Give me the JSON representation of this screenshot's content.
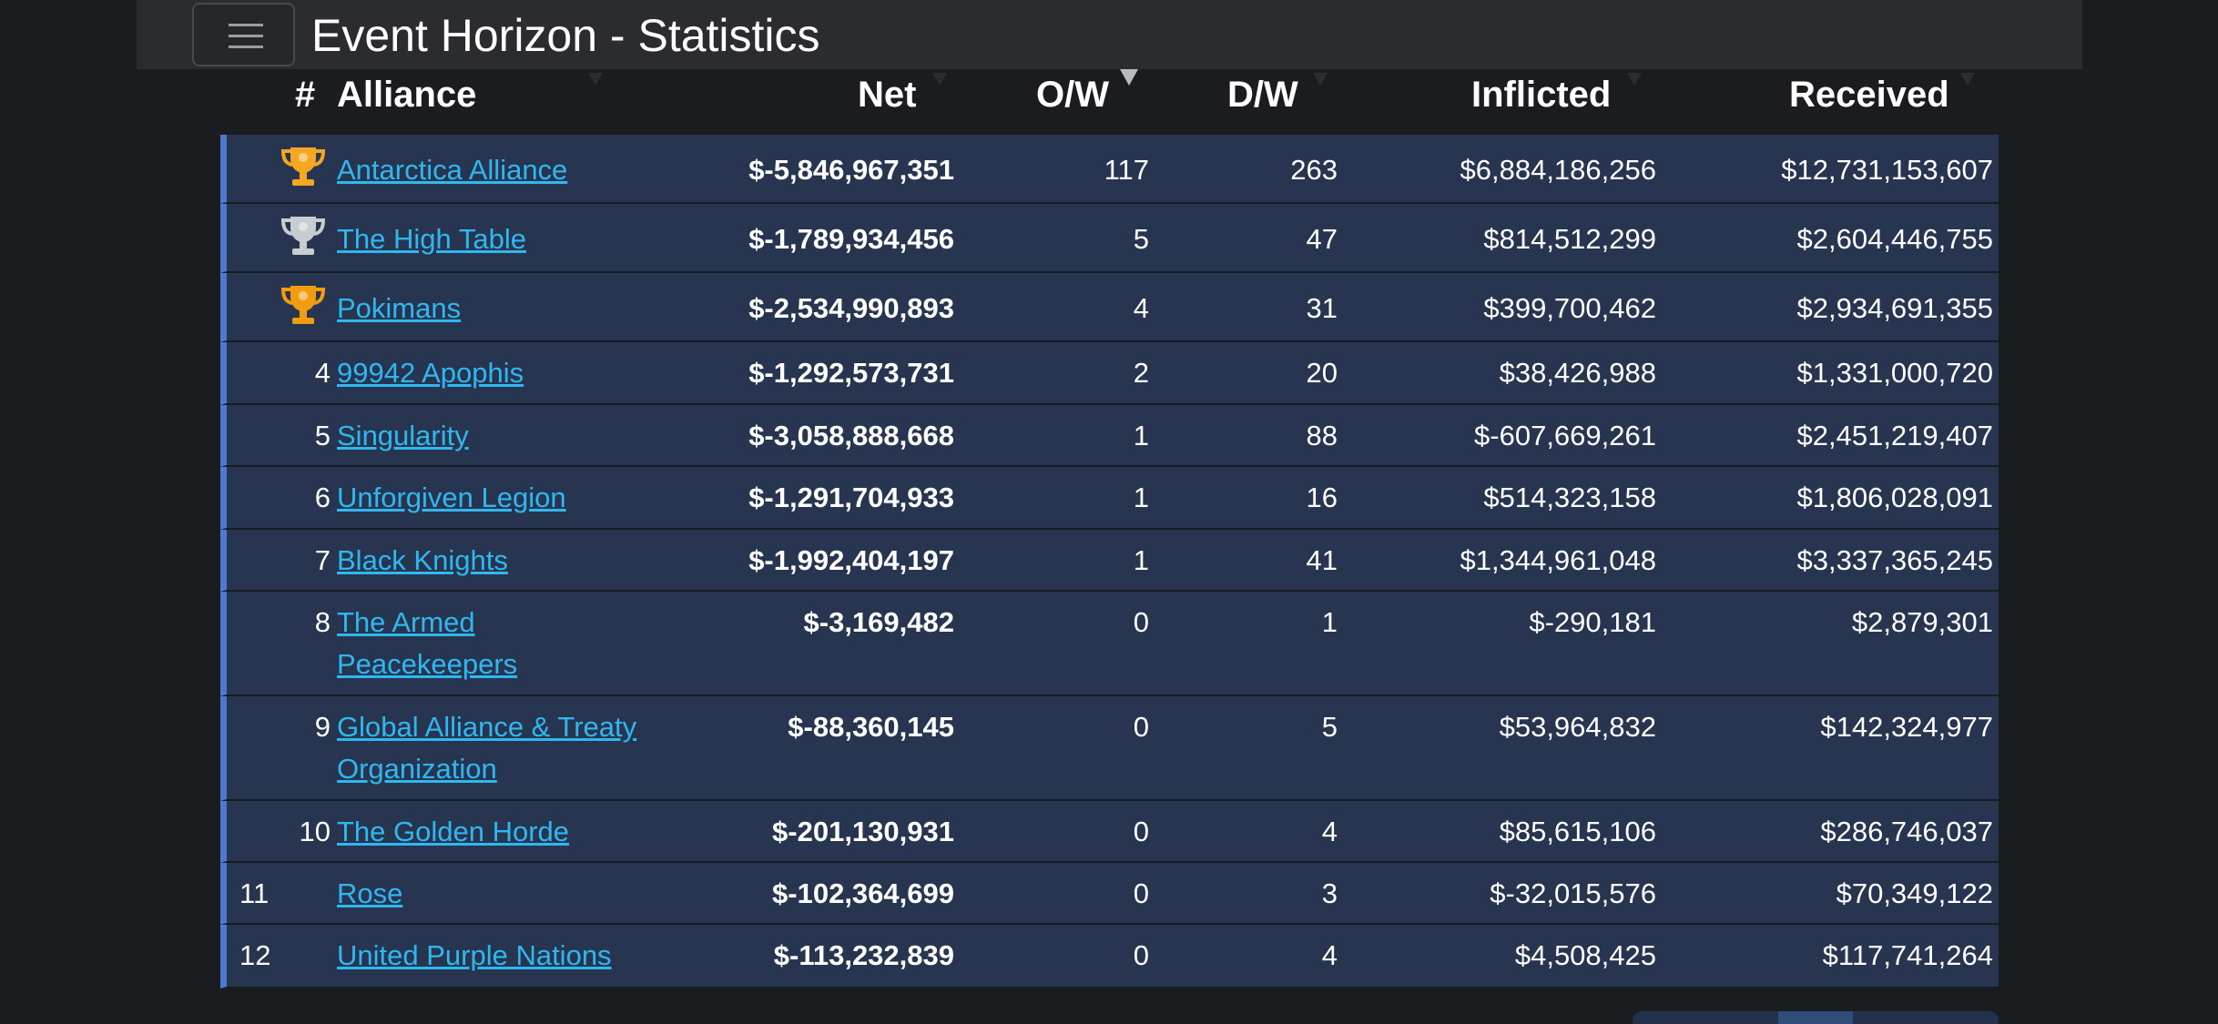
{
  "app": {
    "title": "Event Horizon - Statistics"
  },
  "table": {
    "headers": {
      "rank": "#",
      "alliance": "Alliance",
      "net": "Net",
      "ow": "O/W",
      "dw": "D/W",
      "inflicted": "Inflicted",
      "received": "Received"
    },
    "sorted_column": "O/W",
    "rows": [
      {
        "rank": "",
        "trophy": "gold-trophy-icon",
        "alliance": "Antarctica Alliance",
        "net": "$-5,846,967,351",
        "ow": "117",
        "dw": "263",
        "inflicted": "$6,884,186,256",
        "received": "$12,731,153,607"
      },
      {
        "rank": "",
        "trophy": "silver-trophy-icon",
        "alliance": "The High Table",
        "net": "$-1,789,934,456",
        "ow": "5",
        "dw": "47",
        "inflicted": "$814,512,299",
        "received": "$2,604,446,755"
      },
      {
        "rank": "",
        "trophy": "bronze-trophy-icon",
        "alliance": "Pokimans",
        "net": "$-2,534,990,893",
        "ow": "4",
        "dw": "31",
        "inflicted": "$399,700,462",
        "received": "$2,934,691,355"
      },
      {
        "rank": "4",
        "alliance": "99942 Apophis",
        "net": "$-1,292,573,731",
        "ow": "2",
        "dw": "20",
        "inflicted": "$38,426,988",
        "received": "$1,331,000,720"
      },
      {
        "rank": "5",
        "alliance": "Singularity",
        "net": "$-3,058,888,668",
        "ow": "1",
        "dw": "88",
        "inflicted": "$-607,669,261",
        "received": "$2,451,219,407"
      },
      {
        "rank": "6",
        "alliance": "Unforgiven Legion",
        "net": "$-1,291,704,933",
        "ow": "1",
        "dw": "16",
        "inflicted": "$514,323,158",
        "received": "$1,806,028,091"
      },
      {
        "rank": "7",
        "alliance": "Black Knights",
        "net": "$-1,992,404,197",
        "ow": "1",
        "dw": "41",
        "inflicted": "$1,344,961,048",
        "received": "$3,337,365,245"
      },
      {
        "rank": "8",
        "alliance": "The Armed Peacekeepers",
        "net": "$-3,169,482",
        "ow": "0",
        "dw": "1",
        "inflicted": "$-290,181",
        "received": "$2,879,301"
      },
      {
        "rank": "9",
        "alliance": "Global Alliance & Treaty Organization",
        "net": "$-88,360,145",
        "ow": "0",
        "dw": "5",
        "inflicted": "$53,964,832",
        "received": "$142,324,977"
      },
      {
        "rank": "10",
        "alliance": "The Golden Horde",
        "net": "$-201,130,931",
        "ow": "0",
        "dw": "4",
        "inflicted": "$85,615,106",
        "received": "$286,746,037"
      },
      {
        "rank": "11",
        "alliance": "Rose",
        "net": "$-102,364,699",
        "ow": "0",
        "dw": "3",
        "inflicted": "$-32,015,576",
        "received": "$70,349,122"
      },
      {
        "rank": "12",
        "alliance": "United Purple Nations",
        "net": "$-113,232,839",
        "ow": "0",
        "dw": "4",
        "inflicted": "$4,508,425",
        "received": "$117,741,264"
      }
    ]
  },
  "colors": {
    "background": "#1b1c1f",
    "row_bg": "#283550",
    "row_accent": "#4f78d1",
    "link": "#2fb8f0",
    "gold": "#f5a623",
    "silver": "#c8cdd2",
    "bronze": "#f39c12"
  }
}
